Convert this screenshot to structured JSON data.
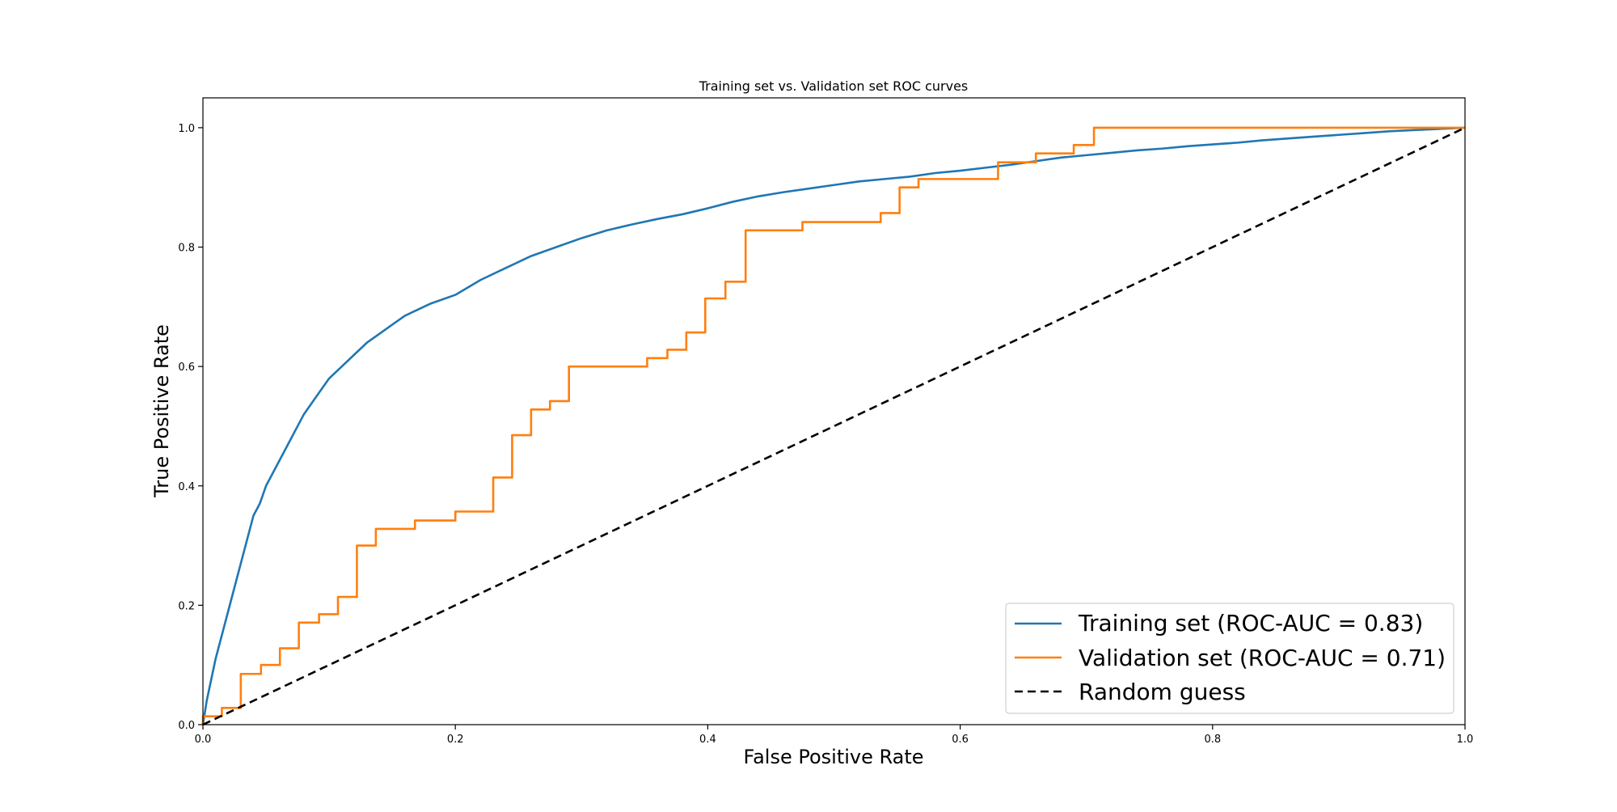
{
  "chart_data": {
    "type": "line",
    "title": "Training set vs. Validation set ROC curves",
    "xlabel": "False Positive Rate",
    "ylabel": "True Positive Rate",
    "xlim": [
      0.0,
      1.0
    ],
    "ylim": [
      0.0,
      1.05
    ],
    "xticks": [
      0.0,
      0.2,
      0.4,
      0.6,
      0.8,
      1.0
    ],
    "yticks": [
      0.0,
      0.2,
      0.4,
      0.6,
      0.8,
      1.0
    ],
    "xtick_labels": [
      "0.0",
      "0.2",
      "0.4",
      "0.6",
      "0.8",
      "1.0"
    ],
    "ytick_labels": [
      "0.0",
      "0.2",
      "0.4",
      "0.6",
      "0.8",
      "1.0"
    ],
    "grid": false,
    "legend_position": "lower-right",
    "series": [
      {
        "name": "Training set (ROC-AUC = 0.83)",
        "color": "#1f77b4",
        "style": "solid",
        "x": [
          0.0,
          0.003,
          0.006,
          0.01,
          0.015,
          0.02,
          0.025,
          0.03,
          0.035,
          0.04,
          0.045,
          0.05,
          0.055,
          0.06,
          0.065,
          0.07,
          0.075,
          0.08,
          0.085,
          0.09,
          0.1,
          0.11,
          0.12,
          0.13,
          0.14,
          0.15,
          0.16,
          0.17,
          0.18,
          0.2,
          0.22,
          0.24,
          0.26,
          0.28,
          0.3,
          0.32,
          0.34,
          0.36,
          0.38,
          0.4,
          0.42,
          0.44,
          0.46,
          0.48,
          0.5,
          0.52,
          0.54,
          0.56,
          0.58,
          0.6,
          0.62,
          0.64,
          0.66,
          0.68,
          0.7,
          0.72,
          0.74,
          0.76,
          0.78,
          0.8,
          0.82,
          0.84,
          0.86,
          0.88,
          0.9,
          0.92,
          0.94,
          0.96,
          0.98,
          1.0
        ],
        "y": [
          0.0,
          0.04,
          0.07,
          0.11,
          0.15,
          0.19,
          0.23,
          0.27,
          0.31,
          0.35,
          0.37,
          0.4,
          0.42,
          0.44,
          0.46,
          0.48,
          0.5,
          0.52,
          0.535,
          0.55,
          0.58,
          0.6,
          0.62,
          0.64,
          0.655,
          0.67,
          0.685,
          0.695,
          0.705,
          0.72,
          0.745,
          0.765,
          0.785,
          0.8,
          0.815,
          0.828,
          0.838,
          0.847,
          0.855,
          0.865,
          0.876,
          0.885,
          0.892,
          0.898,
          0.904,
          0.91,
          0.914,
          0.918,
          0.924,
          0.928,
          0.933,
          0.938,
          0.944,
          0.95,
          0.954,
          0.958,
          0.962,
          0.965,
          0.969,
          0.972,
          0.975,
          0.979,
          0.982,
          0.985,
          0.988,
          0.991,
          0.994,
          0.996,
          0.998,
          1.0
        ]
      },
      {
        "name": "Validation set (ROC-AUC = 0.71)",
        "color": "#ff7f0e",
        "style": "step",
        "x": [
          0.0,
          0.0,
          0.015,
          0.015,
          0.03,
          0.03,
          0.046,
          0.046,
          0.061,
          0.061,
          0.076,
          0.076,
          0.092,
          0.092,
          0.107,
          0.107,
          0.122,
          0.122,
          0.137,
          0.137,
          0.168,
          0.168,
          0.2,
          0.2,
          0.23,
          0.23,
          0.245,
          0.245,
          0.26,
          0.26,
          0.275,
          0.275,
          0.29,
          0.29,
          0.352,
          0.352,
          0.368,
          0.368,
          0.383,
          0.383,
          0.398,
          0.398,
          0.414,
          0.414,
          0.43,
          0.43,
          0.475,
          0.475,
          0.537,
          0.537,
          0.552,
          0.552,
          0.567,
          0.567,
          0.63,
          0.63,
          0.66,
          0.66,
          0.69,
          0.69,
          0.706,
          0.706,
          1.0
        ],
        "y": [
          0.0,
          0.014,
          0.014,
          0.028,
          0.028,
          0.085,
          0.085,
          0.1,
          0.1,
          0.128,
          0.128,
          0.171,
          0.171,
          0.185,
          0.185,
          0.214,
          0.214,
          0.3,
          0.3,
          0.328,
          0.328,
          0.342,
          0.342,
          0.357,
          0.357,
          0.414,
          0.414,
          0.485,
          0.485,
          0.528,
          0.528,
          0.542,
          0.542,
          0.6,
          0.6,
          0.614,
          0.614,
          0.628,
          0.628,
          0.657,
          0.657,
          0.714,
          0.714,
          0.742,
          0.742,
          0.828,
          0.828,
          0.842,
          0.842,
          0.857,
          0.857,
          0.9,
          0.9,
          0.914,
          0.914,
          0.942,
          0.942,
          0.957,
          0.957,
          0.971,
          0.971,
          1.0,
          1.0
        ]
      },
      {
        "name": "Random guess",
        "color": "#000000",
        "style": "dashed",
        "x": [
          0.0,
          1.0
        ],
        "y": [
          0.0,
          1.0
        ]
      }
    ]
  }
}
